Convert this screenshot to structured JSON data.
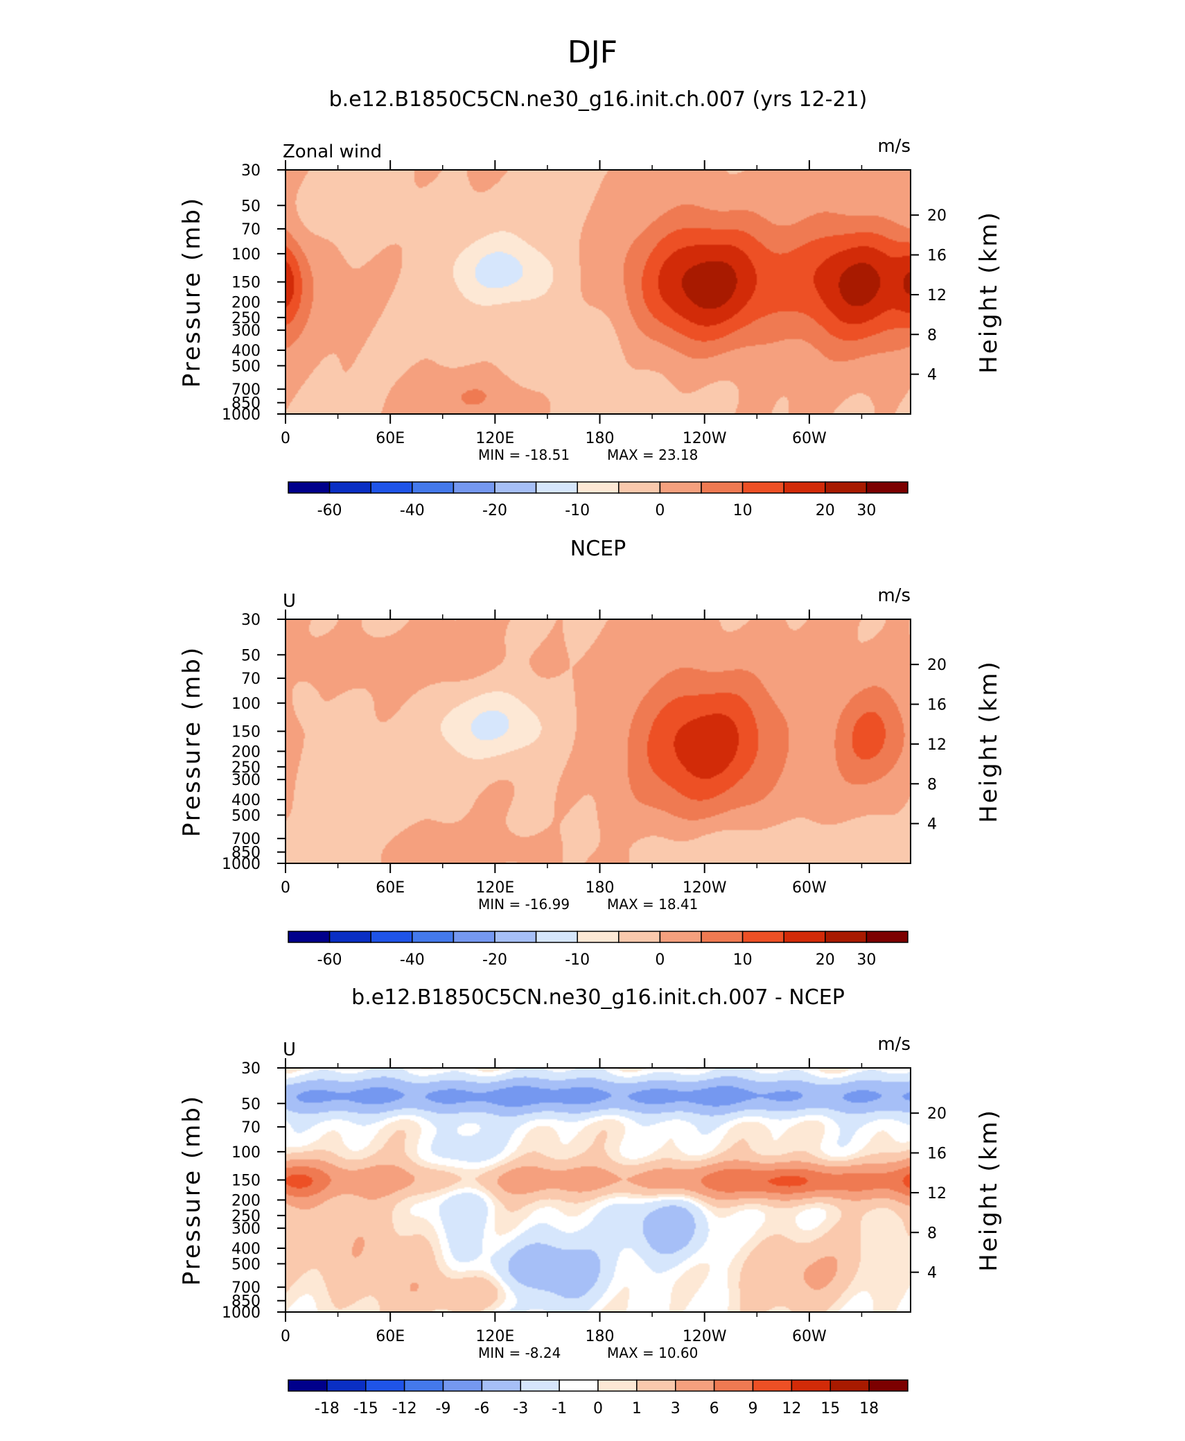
{
  "title": "DJF",
  "colors": {
    "full": [
      "#00008b",
      "#0a2fc4",
      "#1f54e8",
      "#4479eb",
      "#7598f0",
      "#a6bff7",
      "#d6e6fc",
      "#fde8d5",
      "#fac9ad",
      "#f5a07e",
      "#ef7a52",
      "#ed5025",
      "#d22b08",
      "#a81a00",
      "#7c0000"
    ],
    "diff": [
      "#00008b",
      "#0a2fc4",
      "#1f54e8",
      "#4479eb",
      "#7598f0",
      "#a6bff7",
      "#d6e6fc",
      "#ffffff",
      "#fde8d5",
      "#fac9ad",
      "#f5a07e",
      "#ef7a52",
      "#ed5025",
      "#d22b08",
      "#a81a00",
      "#7c0000"
    ]
  },
  "chart_data": [
    {
      "type": "contour",
      "panel_title": "b.e12.B1850C5CN.ne30_g16.init.ch.007 (yrs 12-21)",
      "left_label": "Zonal wind",
      "units": "m/s",
      "xlabel": "",
      "ylabel": "Pressure (mb)",
      "ylabel_right": "Height (km)",
      "x_ticks": [
        "0",
        "60E",
        "120E",
        "180",
        "120W",
        "60W"
      ],
      "x_tick_lon": [
        0,
        60,
        120,
        180,
        240,
        300
      ],
      "x_range": [
        0,
        358
      ],
      "y_ticks": [
        "30",
        "50",
        "70",
        "100",
        "150",
        "200",
        "250",
        "300",
        "400",
        "500",
        "700",
        "850",
        "1000"
      ],
      "y_tick_p": [
        30,
        50,
        70,
        100,
        150,
        200,
        250,
        300,
        400,
        500,
        700,
        850,
        1000
      ],
      "y_range": [
        1000,
        30
      ],
      "y_scale": "log",
      "right_ticks": [
        "20",
        "16",
        "12",
        "8",
        "4"
      ],
      "right_tick_km": [
        20,
        16,
        12,
        8,
        4
      ],
      "min_label": "MIN = -18.51",
      "max_label": "MAX = 23.18",
      "min": -18.51,
      "max": 23.18,
      "colorbar_labels": [
        "-60",
        "-40",
        "-20",
        "-10",
        "0",
        "10",
        "20",
        "30"
      ],
      "colorbar_levels": [
        -65,
        -60,
        -50,
        -40,
        -30,
        -20,
        -15,
        -10,
        -5,
        0,
        5,
        10,
        15,
        20,
        25,
        30,
        35
      ],
      "features": [
        {
          "lon": 125,
          "p": 130,
          "value": -12,
          "rlon": 30,
          "rp": 0.48
        },
        {
          "lon": 240,
          "p": 155,
          "value": 23,
          "rlon": 42,
          "rp": 0.95
        },
        {
          "lon": 328,
          "p": 150,
          "value": 22,
          "rlon": 36,
          "rp": 0.9
        },
        {
          "lon": 0,
          "p": 150,
          "value": 10,
          "rlon": 10,
          "rp": 0.6
        },
        {
          "lon": 110,
          "p": 780,
          "value": 6,
          "rlon": 35,
          "rp": 0.35
        },
        {
          "lon": 180,
          "p": 450,
          "value": -3,
          "rlon": 90,
          "rp": 0.9
        },
        {
          "lon": 40,
          "p": 60,
          "value": -2,
          "rlon": 120,
          "rp": 0.5
        }
      ]
    },
    {
      "type": "contour",
      "panel_title": "NCEP",
      "left_label": "U",
      "units": "m/s",
      "xlabel": "",
      "ylabel": "Pressure (mb)",
      "ylabel_right": "Height (km)",
      "x_ticks": [
        "0",
        "60E",
        "120E",
        "180",
        "120W",
        "60W"
      ],
      "x_tick_lon": [
        0,
        60,
        120,
        180,
        240,
        300
      ],
      "x_range": [
        0,
        358
      ],
      "y_ticks": [
        "30",
        "50",
        "70",
        "100",
        "150",
        "200",
        "250",
        "300",
        "400",
        "500",
        "700",
        "850",
        "1000"
      ],
      "y_tick_p": [
        30,
        50,
        70,
        100,
        150,
        200,
        250,
        300,
        400,
        500,
        700,
        850,
        1000
      ],
      "y_range": [
        1000,
        30
      ],
      "y_scale": "log",
      "right_ticks": [
        "20",
        "16",
        "12",
        "8",
        "4"
      ],
      "right_tick_km": [
        20,
        16,
        12,
        8,
        4
      ],
      "min_label": "MIN = -16.99",
      "max_label": "MAX = 18.41",
      "min": -16.99,
      "max": 18.41,
      "colorbar_labels": [
        "-60",
        "-40",
        "-20",
        "-10",
        "0",
        "10",
        "20",
        "30"
      ],
      "colorbar_levels": [
        -65,
        -60,
        -50,
        -40,
        -30,
        -20,
        -15,
        -10,
        -5,
        0,
        5,
        10,
        15,
        20,
        25,
        30,
        35
      ],
      "features": [
        {
          "lon": 120,
          "p": 140,
          "value": -11,
          "rlon": 32,
          "rp": 0.5
        },
        {
          "lon": 240,
          "p": 180,
          "value": 18,
          "rlon": 42,
          "rp": 1.0
        },
        {
          "lon": 335,
          "p": 160,
          "value": 12,
          "rlon": 22,
          "rp": 0.75
        },
        {
          "lon": 60,
          "p": 55,
          "value": 4,
          "rlon": 60,
          "rp": 0.3
        },
        {
          "lon": 100,
          "p": 800,
          "value": 4,
          "rlon": 40,
          "rp": 0.25
        },
        {
          "lon": 280,
          "p": 750,
          "value": -4,
          "rlon": 80,
          "rp": 0.3
        },
        {
          "lon": 40,
          "p": 300,
          "value": -3,
          "rlon": 50,
          "rp": 0.8
        }
      ]
    },
    {
      "type": "contour",
      "panel_title": "b.e12.B1850C5CN.ne30_g16.init.ch.007 - NCEP",
      "left_label": "U",
      "units": "m/s",
      "xlabel": "",
      "ylabel": "Pressure (mb)",
      "ylabel_right": "Height (km)",
      "x_ticks": [
        "0",
        "60E",
        "120E",
        "180",
        "120W",
        "60W"
      ],
      "x_tick_lon": [
        0,
        60,
        120,
        180,
        240,
        300
      ],
      "x_range": [
        0,
        358
      ],
      "y_ticks": [
        "30",
        "50",
        "70",
        "100",
        "150",
        "200",
        "250",
        "300",
        "400",
        "500",
        "700",
        "850",
        "1000"
      ],
      "y_tick_p": [
        30,
        50,
        70,
        100,
        150,
        200,
        250,
        300,
        400,
        500,
        700,
        850,
        1000
      ],
      "y_range": [
        1000,
        30
      ],
      "y_scale": "log",
      "right_ticks": [
        "20",
        "16",
        "12",
        "8",
        "4"
      ],
      "right_tick_km": [
        20,
        16,
        12,
        8,
        4
      ],
      "min_label": "MIN =  -8.24",
      "max_label": "MAX =  10.60",
      "min": -8.24,
      "max": 10.6,
      "colorbar_labels": [
        "-18",
        "-15",
        "-12",
        "-9",
        "-6",
        "-3",
        "-1",
        "0",
        "1",
        "3",
        "6",
        "9",
        "12",
        "15",
        "18"
      ],
      "colorbar_levels": [
        -21,
        -18,
        -15,
        -12,
        -9,
        -6,
        -3,
        -1,
        0,
        1,
        3,
        6,
        9,
        12,
        15,
        18,
        21
      ],
      "features": [
        {
          "lon": 170,
          "p": 45,
          "value": -7,
          "rlon": 400,
          "rp": 0.25
        },
        {
          "lon": 170,
          "p": 150,
          "value": 4,
          "rlon": 400,
          "rp": 0.25
        },
        {
          "lon": 290,
          "p": 155,
          "value": 6,
          "rlon": 55,
          "rp": 0.25
        },
        {
          "lon": 5,
          "p": 150,
          "value": 6,
          "rlon": 18,
          "rp": 0.35
        },
        {
          "lon": 150,
          "p": 600,
          "value": -6,
          "rlon": 35,
          "rp": 0.5
        },
        {
          "lon": 220,
          "p": 300,
          "value": -6,
          "rlon": 22,
          "rp": 0.45
        },
        {
          "lon": 100,
          "p": 200,
          "value": -3,
          "rlon": 18,
          "rp": 1.0
        },
        {
          "lon": 50,
          "p": 450,
          "value": 3,
          "rlon": 40,
          "rp": 0.8
        },
        {
          "lon": 120,
          "p": 750,
          "value": 4,
          "rlon": 35,
          "rp": 0.3
        },
        {
          "lon": 290,
          "p": 550,
          "value": 3,
          "rlon": 40,
          "rp": 0.5
        }
      ]
    }
  ]
}
